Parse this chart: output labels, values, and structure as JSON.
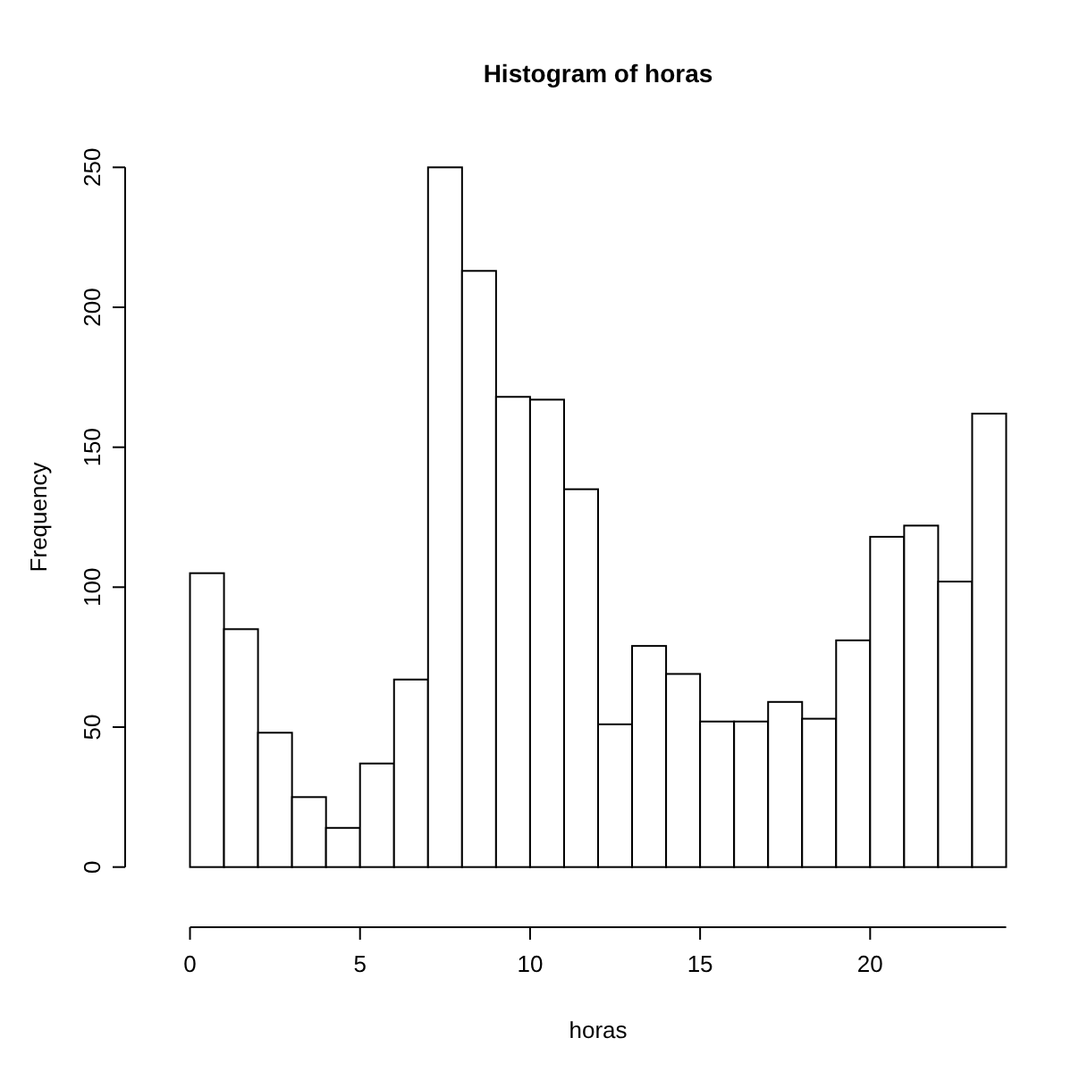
{
  "chart_data": {
    "type": "histogram",
    "title": "Histogram of horas",
    "xlabel": "horas",
    "ylabel": "Frequency",
    "bins": [
      0,
      1,
      2,
      3,
      4,
      5,
      6,
      7,
      8,
      9,
      10,
      11,
      12,
      13,
      14,
      15,
      16,
      17,
      18,
      19,
      20,
      21,
      22,
      23,
      24
    ],
    "values": [
      105,
      85,
      48,
      25,
      14,
      37,
      67,
      250,
      213,
      168,
      167,
      135,
      51,
      79,
      69,
      52,
      52,
      59,
      53,
      81,
      118,
      122,
      102,
      162
    ],
    "color": "#ffffff",
    "xlim": [
      0,
      24
    ],
    "ylim": [
      0,
      250
    ],
    "xticks": [
      0,
      5,
      10,
      15,
      20
    ],
    "yticks": [
      0,
      50,
      100,
      150,
      200,
      250
    ],
    "grid": false
  }
}
